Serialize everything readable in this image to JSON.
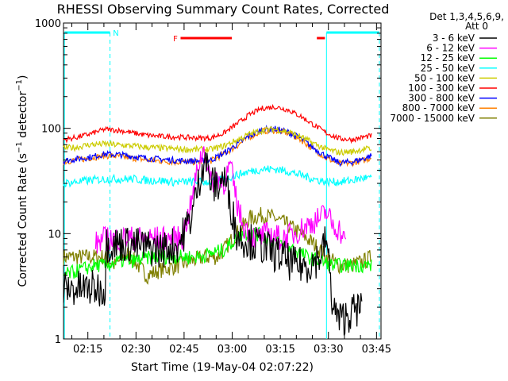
{
  "chart_data": {
    "type": "line",
    "title": "RHESSI Observing Summary Count Rates, Corrected",
    "xlabel": "Start Time (19-May-04 02:07:22)",
    "ylabel": "Corrected Count Rate (s⁻¹ detector⁻¹)",
    "yscale": "log",
    "ylim": [
      1,
      1000
    ],
    "xlim_minutes": [
      0,
      99
    ],
    "x_unit": "minutes after 02:07:22",
    "yticks": [
      {
        "value": 1,
        "label": "1"
      },
      {
        "value": 10,
        "label": "10"
      },
      {
        "value": 100,
        "label": "100"
      },
      {
        "value": 1000,
        "label": "1000"
      }
    ],
    "xticks": [
      {
        "value": 7.6,
        "label": "02:15"
      },
      {
        "value": 22.6,
        "label": "02:30"
      },
      {
        "value": 37.6,
        "label": "02:45"
      },
      {
        "value": 52.6,
        "label": "03:00"
      },
      {
        "value": 67.6,
        "label": "03:15"
      },
      {
        "value": 82.6,
        "label": "03:30"
      },
      {
        "value": 97.6,
        "label": "03:45"
      }
    ],
    "legend": {
      "header": [
        "Det 1,3,4,5,6,9,",
        "Att 0"
      ],
      "placement": "right"
    },
    "series": [
      {
        "name": "3 - 6 keV",
        "color": "#000000",
        "points": [
          [
            0,
            3
          ],
          [
            13,
            3
          ],
          [
            13.2,
            8
          ],
          [
            20,
            8
          ],
          [
            30,
            7
          ],
          [
            36,
            8
          ],
          [
            40,
            15
          ],
          [
            43,
            40
          ],
          [
            44,
            55
          ],
          [
            46,
            30
          ],
          [
            48,
            28
          ],
          [
            50,
            35
          ],
          [
            52,
            20
          ],
          [
            54,
            10
          ],
          [
            56,
            9
          ],
          [
            60,
            8
          ],
          [
            64,
            7
          ],
          [
            68,
            6
          ],
          [
            72,
            5
          ],
          [
            76,
            5
          ],
          [
            80,
            6
          ],
          [
            82,
            9
          ],
          [
            84,
            2
          ],
          [
            86,
            1.5
          ],
          [
            90,
            1.8
          ],
          [
            93,
            2
          ]
        ]
      },
      {
        "name": "6 - 12 keV",
        "color": "#ff00ff",
        "points": [
          [
            10,
            8
          ],
          [
            13,
            9
          ],
          [
            16,
            9
          ],
          [
            20,
            9
          ],
          [
            26,
            9
          ],
          [
            32,
            9
          ],
          [
            37,
            9
          ],
          [
            40,
            20
          ],
          [
            42,
            45
          ],
          [
            44,
            65
          ],
          [
            46,
            30
          ],
          [
            48,
            35
          ],
          [
            50,
            30
          ],
          [
            52,
            45
          ],
          [
            54,
            20
          ],
          [
            56,
            12
          ],
          [
            60,
            9
          ],
          [
            64,
            10
          ],
          [
            68,
            9
          ],
          [
            72,
            10
          ],
          [
            76,
            12
          ],
          [
            80,
            14
          ],
          [
            82,
            16
          ],
          [
            84,
            12
          ],
          [
            86,
            11
          ],
          [
            88,
            8
          ]
        ]
      },
      {
        "name": "12 - 25 keV",
        "color": "#00ff00",
        "points": [
          [
            0,
            4
          ],
          [
            5,
            4.5
          ],
          [
            10,
            5
          ],
          [
            13,
            5
          ],
          [
            18,
            5.5
          ],
          [
            22,
            5.5
          ],
          [
            28,
            6
          ],
          [
            34,
            6
          ],
          [
            38,
            6
          ],
          [
            42,
            6
          ],
          [
            46,
            6.5
          ],
          [
            50,
            7
          ],
          [
            52,
            8
          ],
          [
            56,
            10
          ],
          [
            60,
            10
          ],
          [
            64,
            9
          ],
          [
            68,
            8
          ],
          [
            72,
            7
          ],
          [
            76,
            6
          ],
          [
            80,
            5.5
          ],
          [
            84,
            5
          ],
          [
            88,
            5
          ],
          [
            92,
            5
          ],
          [
            96,
            5
          ]
        ]
      },
      {
        "name": "25 - 50 keV",
        "color": "#00ffff",
        "points": [
          [
            0,
            30
          ],
          [
            4,
            31
          ],
          [
            8,
            32
          ],
          [
            13,
            33
          ],
          [
            18,
            33
          ],
          [
            22,
            33
          ],
          [
            26,
            32
          ],
          [
            30,
            32
          ],
          [
            34,
            31
          ],
          [
            38,
            31
          ],
          [
            42,
            31
          ],
          [
            46,
            31
          ],
          [
            50,
            33
          ],
          [
            54,
            36
          ],
          [
            58,
            39
          ],
          [
            62,
            41
          ],
          [
            66,
            41
          ],
          [
            70,
            39
          ],
          [
            74,
            36
          ],
          [
            78,
            33
          ],
          [
            82,
            31
          ],
          [
            86,
            31
          ],
          [
            90,
            32
          ],
          [
            94,
            34
          ],
          [
            96,
            33
          ]
        ]
      },
      {
        "name": "50 - 100 keV",
        "color": "#cccc00",
        "points": [
          [
            0,
            65
          ],
          [
            4,
            66
          ],
          [
            8,
            70
          ],
          [
            13,
            71
          ],
          [
            18,
            69
          ],
          [
            22,
            68
          ],
          [
            26,
            66
          ],
          [
            30,
            65
          ],
          [
            34,
            64
          ],
          [
            38,
            63
          ],
          [
            42,
            63
          ],
          [
            46,
            63
          ],
          [
            50,
            68
          ],
          [
            54,
            77
          ],
          [
            58,
            88
          ],
          [
            62,
            96
          ],
          [
            66,
            98
          ],
          [
            70,
            93
          ],
          [
            74,
            83
          ],
          [
            78,
            72
          ],
          [
            82,
            63
          ],
          [
            86,
            59
          ],
          [
            90,
            60
          ],
          [
            94,
            64
          ],
          [
            96,
            63
          ]
        ]
      },
      {
        "name": "100 - 300 keV",
        "color": "#ff0000",
        "points": [
          [
            0,
            78
          ],
          [
            4,
            82
          ],
          [
            8,
            88
          ],
          [
            13,
            98
          ],
          [
            18,
            95
          ],
          [
            22,
            90
          ],
          [
            26,
            86
          ],
          [
            30,
            84
          ],
          [
            34,
            83
          ],
          [
            38,
            82
          ],
          [
            42,
            81
          ],
          [
            46,
            81
          ],
          [
            50,
            90
          ],
          [
            54,
            110
          ],
          [
            58,
            135
          ],
          [
            62,
            155
          ],
          [
            66,
            160
          ],
          [
            70,
            150
          ],
          [
            74,
            130
          ],
          [
            78,
            108
          ],
          [
            82,
            90
          ],
          [
            86,
            80
          ],
          [
            90,
            78
          ],
          [
            94,
            83
          ],
          [
            96,
            85
          ]
        ]
      },
      {
        "name": "300 - 800 keV",
        "color": "#0000ff",
        "points": [
          [
            0,
            49
          ],
          [
            4,
            51
          ],
          [
            8,
            53
          ],
          [
            13,
            57
          ],
          [
            18,
            56
          ],
          [
            22,
            54
          ],
          [
            26,
            52
          ],
          [
            30,
            51
          ],
          [
            34,
            50
          ],
          [
            38,
            49
          ],
          [
            42,
            49
          ],
          [
            46,
            50
          ],
          [
            50,
            58
          ],
          [
            54,
            70
          ],
          [
            58,
            85
          ],
          [
            62,
            97
          ],
          [
            66,
            99
          ],
          [
            70,
            92
          ],
          [
            74,
            80
          ],
          [
            78,
            65
          ],
          [
            82,
            54
          ],
          [
            86,
            47
          ],
          [
            90,
            48
          ],
          [
            94,
            52
          ],
          [
            96,
            55
          ]
        ]
      },
      {
        "name": "800 - 7000 keV",
        "color": "#ff8000",
        "points": [
          [
            0,
            48
          ],
          [
            4,
            50
          ],
          [
            8,
            52
          ],
          [
            13,
            55
          ],
          [
            18,
            54
          ],
          [
            22,
            52
          ],
          [
            26,
            50
          ],
          [
            30,
            49
          ],
          [
            34,
            48
          ],
          [
            38,
            48
          ],
          [
            42,
            48
          ],
          [
            46,
            49
          ],
          [
            50,
            57
          ],
          [
            54,
            68
          ],
          [
            58,
            83
          ],
          [
            62,
            94
          ],
          [
            66,
            96
          ],
          [
            70,
            90
          ],
          [
            74,
            78
          ],
          [
            78,
            63
          ],
          [
            82,
            52
          ],
          [
            86,
            46
          ],
          [
            90,
            47
          ],
          [
            94,
            50
          ],
          [
            96,
            53
          ]
        ]
      },
      {
        "name": "7000 - 15000 keV",
        "color": "#808000",
        "points": [
          [
            0,
            6
          ],
          [
            4,
            6
          ],
          [
            8,
            6
          ],
          [
            13,
            6
          ],
          [
            16,
            5
          ],
          [
            20,
            6.5
          ],
          [
            26,
            4
          ],
          [
            30,
            4.5
          ],
          [
            36,
            5
          ],
          [
            40,
            5.5
          ],
          [
            44,
            6
          ],
          [
            48,
            6
          ],
          [
            50,
            7
          ],
          [
            54,
            10
          ],
          [
            58,
            14
          ],
          [
            62,
            15
          ],
          [
            66,
            14
          ],
          [
            70,
            12
          ],
          [
            74,
            10
          ],
          [
            78,
            8
          ],
          [
            82,
            6
          ],
          [
            86,
            5
          ],
          [
            90,
            5
          ],
          [
            94,
            5.5
          ],
          [
            96,
            6
          ]
        ]
      }
    ],
    "annotations": {
      "night_label": "N",
      "flare_label": "F"
    }
  }
}
